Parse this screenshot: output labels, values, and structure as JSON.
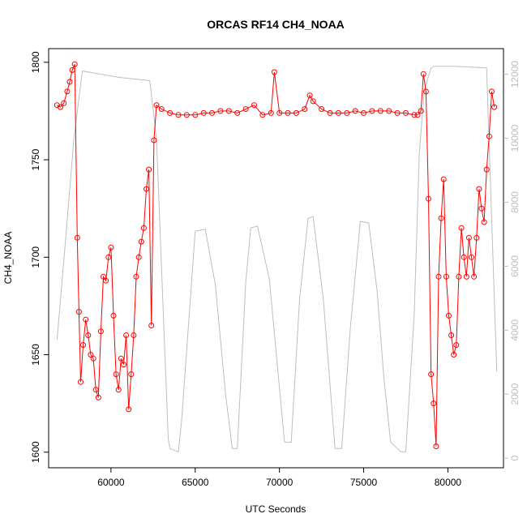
{
  "chart_data": {
    "type": "line",
    "title": "ORCAS RF14 CH4_NOAA",
    "xlabel": "UTC Seconds",
    "ylabel": "CH4_NOAA",
    "xlim": [
      56300,
      83300
    ],
    "ylim": [
      1592,
      1807
    ],
    "y2lim": [
      -300,
      12800
    ],
    "xticks": [
      60000,
      65000,
      70000,
      75000,
      80000
    ],
    "yticks": [
      1600,
      1650,
      1700,
      1750,
      1800
    ],
    "y2ticks": [
      0,
      2000,
      4000,
      6000,
      8000,
      10000,
      12000
    ],
    "colors": {
      "ch4": "#ff0000",
      "altitude": "#bebebe",
      "axis": "#000000",
      "right_axis": "#bdbdbd"
    },
    "series": [
      {
        "axis": "right",
        "style": "line",
        "x": [
          56800,
          57300,
          57800,
          58300,
          60500,
          62300,
          62700,
          63400,
          63500,
          64000,
          64200,
          65000,
          65600,
          66200,
          66800,
          67200,
          67500,
          68000,
          68300,
          68700,
          69400,
          70300,
          70700,
          71200,
          71700,
          72000,
          72600,
          73300,
          73500,
          73700,
          74200,
          74800,
          75300,
          75800,
          76200,
          76600,
          77000,
          77200,
          77500,
          78000,
          78300,
          78600,
          79000,
          79200,
          79500,
          80400,
          82300,
          82500,
          82900
        ],
        "y": [
          3700,
          6800,
          10000,
          12100,
          11900,
          11800,
          10000,
          600,
          300,
          200,
          1200,
          7100,
          7150,
          5400,
          2000,
          300,
          300,
          5500,
          7200,
          7250,
          5600,
          500,
          500,
          5000,
          7500,
          7550,
          5000,
          300,
          300,
          300,
          4000,
          7400,
          7350,
          5200,
          2500,
          500,
          300,
          200,
          200,
          4500,
          9500,
          11500,
          12200,
          12250,
          12250,
          12250,
          12200,
          9000,
          2700
        ]
      },
      {
        "axis": "left",
        "style": "points",
        "x": [
          56800,
          57000,
          57200,
          57400,
          57550,
          57700,
          57850,
          58000,
          58100,
          58200,
          58350,
          58500,
          58650,
          58800,
          58950,
          59100,
          59250,
          59400,
          59550,
          59700,
          59850,
          60000,
          60150,
          60300,
          60450,
          60600,
          60750,
          60900,
          61050,
          61200,
          61350,
          61500,
          61650,
          61800,
          61950,
          62100,
          62250,
          62400,
          62550,
          62700,
          63000,
          63500,
          64000,
          64500,
          65000,
          65500,
          66000,
          66500,
          67000,
          67500,
          68000,
          68500,
          69000,
          69500,
          69700,
          70000,
          70500,
          71000,
          71500,
          71800,
          72000,
          72500,
          73000,
          73500,
          74000,
          74500,
          75000,
          75500,
          76000,
          76500,
          77000,
          77500,
          78000,
          78200,
          78400,
          78550,
          78700,
          78850,
          79000,
          79150,
          79300,
          79450,
          79600,
          79750,
          79900,
          80050,
          80200,
          80350,
          80500,
          80650,
          80800,
          80950,
          81100,
          81250,
          81400,
          81550,
          81700,
          81850,
          82000,
          82150,
          82300,
          82450,
          82600,
          82750
        ],
        "y": [
          1778,
          1777,
          1779,
          1785,
          1790,
          1796,
          1799,
          1710,
          1672,
          1636,
          1655,
          1668,
          1660,
          1650,
          1648,
          1632,
          1628,
          1662,
          1690,
          1688,
          1700,
          1705,
          1670,
          1640,
          1632,
          1648,
          1645,
          1660,
          1622,
          1640,
          1660,
          1690,
          1700,
          1708,
          1715,
          1735,
          1745,
          1665,
          1760,
          1778,
          1776,
          1774,
          1773,
          1773,
          1773,
          1774,
          1774,
          1775,
          1775,
          1774,
          1776,
          1778,
          1773,
          1774,
          1795,
          1774,
          1774,
          1774,
          1776,
          1783,
          1780,
          1776,
          1774,
          1774,
          1774,
          1775,
          1774,
          1775,
          1775,
          1775,
          1774,
          1774,
          1773,
          1773,
          1775,
          1794,
          1785,
          1730,
          1640,
          1625,
          1603,
          1690,
          1720,
          1740,
          1690,
          1670,
          1660,
          1650,
          1655,
          1690,
          1715,
          1700,
          1690,
          1710,
          1700,
          1690,
          1710,
          1735,
          1725,
          1718,
          1745,
          1762,
          1785,
          1777
        ]
      }
    ]
  }
}
